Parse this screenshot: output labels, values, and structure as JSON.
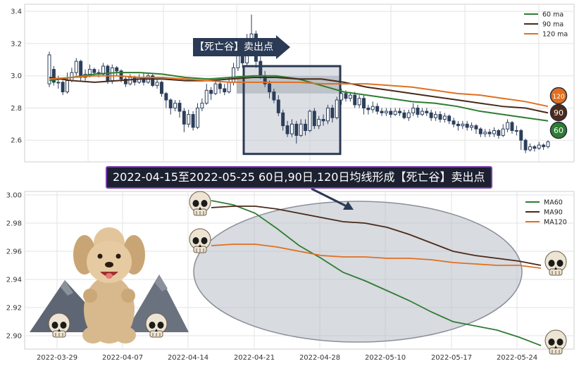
{
  "banner_text": "2022-04-15至2022-05-25 60日,90日,120日均线形成【死亡谷】卖出点",
  "arrow_label": "【死亡谷】卖出点",
  "colors": {
    "ma60": "#2e7d32",
    "ma90": "#4a2a1a",
    "ma120": "#e07020",
    "candle": "#2c3e5a",
    "box": "#2b3a55"
  },
  "icons": [
    "skull-icon",
    "poodle-illustration",
    "mountain-icon",
    "arrow-right-icon"
  ],
  "chart_data": [
    {
      "type": "candlestick",
      "y_ticks": [
        "2.6",
        "2.8",
        "3.0",
        "3.2",
        "3.4"
      ],
      "ylim": [
        2.47,
        3.44
      ],
      "legend": [
        "60 ma",
        "90 ma",
        "120 ma"
      ],
      "legend_placement": "top-right",
      "end_badges": [
        "120",
        "90",
        "60"
      ],
      "grid": true,
      "candles": [
        [
          2.95,
          3.13,
          3.15,
          2.93
        ],
        [
          3.04,
          2.96,
          3.06,
          2.94
        ],
        [
          2.96,
          2.96,
          3.0,
          2.92
        ],
        [
          2.96,
          2.9,
          2.97,
          2.88
        ],
        [
          2.9,
          2.97,
          3.02,
          2.89
        ],
        [
          2.97,
          3.02,
          3.05,
          2.96
        ],
        [
          3.02,
          3.09,
          3.11,
          3.0
        ],
        [
          3.09,
          2.99,
          3.1,
          2.97
        ],
        [
          2.99,
          3.01,
          3.04,
          2.97
        ],
        [
          3.01,
          3.04,
          3.07,
          2.99
        ],
        [
          3.04,
          3.02,
          3.05,
          3.0
        ],
        [
          3.02,
          3.01,
          3.04,
          2.99
        ],
        [
          3.01,
          3.06,
          3.08,
          3.0
        ],
        [
          3.06,
          2.97,
          3.07,
          2.95
        ],
        [
          2.97,
          3.05,
          3.07,
          2.95
        ],
        [
          3.05,
          3.03,
          3.06,
          3.0
        ],
        [
          3.03,
          2.98,
          3.04,
          2.96
        ],
        [
          2.98,
          2.95,
          3.0,
          2.93
        ],
        [
          2.95,
          2.99,
          3.01,
          2.94
        ],
        [
          2.99,
          2.96,
          3.0,
          2.94
        ],
        [
          2.96,
          2.99,
          3.01,
          2.95
        ],
        [
          2.99,
          2.96,
          3.02,
          2.94
        ],
        [
          2.96,
          3.0,
          3.02,
          2.95
        ],
        [
          3.0,
          2.94,
          3.01,
          2.93
        ],
        [
          2.94,
          2.96,
          2.98,
          2.92
        ],
        [
          2.96,
          2.89,
          2.97,
          2.87
        ],
        [
          2.89,
          2.85,
          2.9,
          2.8
        ],
        [
          2.85,
          2.8,
          2.86,
          2.76
        ],
        [
          2.8,
          2.83,
          2.85,
          2.78
        ],
        [
          2.83,
          2.78,
          2.85,
          2.74
        ],
        [
          2.78,
          2.7,
          2.8,
          2.65
        ],
        [
          2.7,
          2.76,
          2.79,
          2.68
        ],
        [
          2.76,
          2.68,
          2.78,
          2.66
        ],
        [
          2.68,
          2.8,
          2.83,
          2.67
        ],
        [
          2.8,
          2.83,
          2.86,
          2.78
        ],
        [
          2.83,
          2.91,
          2.95,
          2.82
        ],
        [
          2.91,
          2.89,
          2.93,
          2.85
        ],
        [
          2.89,
          2.95,
          2.97,
          2.88
        ],
        [
          2.95,
          2.92,
          2.97,
          2.89
        ],
        [
          2.92,
          2.9,
          2.95,
          2.88
        ],
        [
          2.9,
          2.96,
          2.99,
          2.89
        ],
        [
          2.96,
          3.05,
          3.08,
          2.94
        ],
        [
          3.05,
          3.13,
          3.16,
          3.03
        ],
        [
          3.13,
          3.08,
          3.2,
          3.05
        ],
        [
          3.08,
          3.23,
          3.26,
          3.06
        ],
        [
          3.23,
          3.26,
          3.38,
          3.18
        ],
        [
          3.26,
          3.09,
          3.28,
          3.05
        ],
        [
          3.09,
          3.0,
          3.12,
          2.98
        ],
        [
          3.0,
          2.95,
          3.03,
          2.93
        ],
        [
          2.95,
          2.9,
          2.97,
          2.86
        ],
        [
          2.9,
          2.85,
          2.92,
          2.83
        ],
        [
          2.85,
          2.77,
          2.88,
          2.75
        ],
        [
          2.77,
          2.69,
          2.79,
          2.66
        ],
        [
          2.69,
          2.64,
          2.72,
          2.62
        ],
        [
          2.64,
          2.7,
          2.73,
          2.62
        ],
        [
          2.7,
          2.63,
          2.72,
          2.58
        ],
        [
          2.63,
          2.7,
          2.73,
          2.62
        ],
        [
          2.7,
          2.66,
          2.73,
          2.63
        ],
        [
          2.66,
          2.78,
          2.79,
          2.65
        ],
        [
          2.78,
          2.69,
          2.8,
          2.67
        ],
        [
          2.69,
          2.73,
          2.75,
          2.67
        ],
        [
          2.73,
          2.72,
          2.76,
          2.69
        ],
        [
          2.72,
          2.8,
          2.82,
          2.7
        ],
        [
          2.8,
          2.74,
          2.82,
          2.71
        ],
        [
          2.74,
          2.85,
          2.87,
          2.73
        ],
        [
          2.85,
          2.89,
          2.92,
          2.82
        ],
        [
          2.89,
          2.86,
          2.91,
          2.84
        ],
        [
          2.86,
          2.88,
          2.9,
          2.84
        ],
        [
          2.88,
          2.82,
          2.9,
          2.8
        ],
        [
          2.82,
          2.86,
          2.88,
          2.8
        ],
        [
          2.86,
          2.8,
          2.88,
          2.76
        ],
        [
          2.8,
          2.79,
          2.82,
          2.76
        ],
        [
          2.79,
          2.81,
          2.84,
          2.77
        ],
        [
          2.81,
          2.78,
          2.83,
          2.76
        ],
        [
          2.78,
          2.77,
          2.8,
          2.75
        ],
        [
          2.77,
          2.78,
          2.8,
          2.75
        ],
        [
          2.78,
          2.76,
          2.8,
          2.74
        ],
        [
          2.76,
          2.78,
          2.8,
          2.75
        ],
        [
          2.78,
          2.77,
          2.8,
          2.75
        ],
        [
          2.77,
          2.74,
          2.79,
          2.73
        ],
        [
          2.74,
          2.77,
          2.79,
          2.72
        ],
        [
          2.77,
          2.8,
          2.83,
          2.75
        ],
        [
          2.8,
          2.76,
          2.82,
          2.74
        ],
        [
          2.76,
          2.78,
          2.8,
          2.75
        ],
        [
          2.78,
          2.77,
          2.8,
          2.75
        ],
        [
          2.77,
          2.74,
          2.79,
          2.72
        ],
        [
          2.74,
          2.76,
          2.78,
          2.72
        ],
        [
          2.76,
          2.73,
          2.78,
          2.71
        ],
        [
          2.73,
          2.75,
          2.77,
          2.71
        ],
        [
          2.75,
          2.72,
          2.76,
          2.7
        ],
        [
          2.72,
          2.7,
          2.74,
          2.68
        ],
        [
          2.7,
          2.69,
          2.72,
          2.66
        ],
        [
          2.69,
          2.7,
          2.72,
          2.67
        ],
        [
          2.7,
          2.68,
          2.72,
          2.66
        ],
        [
          2.68,
          2.69,
          2.71,
          2.66
        ],
        [
          2.69,
          2.67,
          2.7,
          2.64
        ],
        [
          2.67,
          2.64,
          2.68,
          2.62
        ],
        [
          2.64,
          2.65,
          2.67,
          2.62
        ],
        [
          2.65,
          2.64,
          2.67,
          2.62
        ],
        [
          2.64,
          2.66,
          2.68,
          2.62
        ],
        [
          2.66,
          2.63,
          2.67,
          2.61
        ],
        [
          2.63,
          2.67,
          2.7,
          2.62
        ],
        [
          2.67,
          2.71,
          2.73,
          2.65
        ],
        [
          2.71,
          2.66,
          2.72,
          2.64
        ],
        [
          2.66,
          2.66,
          2.69,
          2.63
        ],
        [
          2.66,
          2.6,
          2.67,
          2.54
        ],
        [
          2.6,
          2.54,
          2.61,
          2.52
        ],
        [
          2.54,
          2.56,
          2.58,
          2.53
        ],
        [
          2.56,
          2.55,
          2.57,
          2.53
        ],
        [
          2.55,
          2.57,
          2.59,
          2.54
        ],
        [
          2.57,
          2.56,
          2.58,
          2.54
        ],
        [
          2.56,
          2.59,
          2.6,
          2.55
        ]
      ],
      "series": [
        {
          "name": "60 ma",
          "values": [
            2.97,
            2.99,
            3.01,
            3.02,
            3.02,
            3.01,
            2.99,
            2.98,
            2.99,
            3.0,
            3.0,
            2.98,
            2.94,
            2.9,
            2.88,
            2.86,
            2.84,
            2.83,
            2.81,
            2.78,
            2.76,
            2.74,
            2.72
          ]
        },
        {
          "name": "90 ma",
          "values": [
            2.99,
            2.97,
            2.96,
            2.97,
            2.98,
            2.98,
            2.97,
            2.97,
            2.98,
            2.99,
            2.99,
            2.98,
            2.98,
            2.96,
            2.93,
            2.91,
            2.89,
            2.87,
            2.85,
            2.83,
            2.81,
            2.8,
            2.77
          ]
        },
        {
          "name": "120 ma",
          "values": [
            2.98,
            2.99,
            3.0,
            3.0,
            2.99,
            2.99,
            2.98,
            2.97,
            2.96,
            2.96,
            2.96,
            2.96,
            2.95,
            2.95,
            2.95,
            2.94,
            2.93,
            2.91,
            2.89,
            2.88,
            2.86,
            2.84,
            2.81
          ]
        }
      ]
    },
    {
      "type": "line",
      "x_tick_labels": [
        "2022-03-29",
        "2022-04-07",
        "2022-04-14",
        "2022-04-21",
        "2022-04-28",
        "2022-05-10",
        "2022-05-17",
        "2022-05-24"
      ],
      "y_ticks": [
        "2.90",
        "2.92",
        "2.94",
        "2.96",
        "2.98",
        "3.00"
      ],
      "ylim": [
        2.891,
        3.002
      ],
      "legend": [
        "MA60",
        "MA90",
        "MA120"
      ],
      "legend_placement": "top-right",
      "grid": true,
      "series": [
        {
          "name": "MA60",
          "values": [
            2.996,
            2.993,
            2.987,
            2.976,
            2.964,
            2.955,
            2.945,
            2.939,
            2.932,
            2.925,
            2.917,
            2.91,
            2.907,
            2.904,
            2.899,
            2.893
          ]
        },
        {
          "name": "MA90",
          "values": [
            2.991,
            2.992,
            2.992,
            2.99,
            2.987,
            2.984,
            2.981,
            2.98,
            2.977,
            2.972,
            2.966,
            2.96,
            2.957,
            2.955,
            2.953,
            2.95
          ]
        },
        {
          "name": "MA120",
          "values": [
            2.964,
            2.965,
            2.965,
            2.963,
            2.96,
            2.957,
            2.956,
            2.956,
            2.955,
            2.955,
            2.954,
            2.952,
            2.951,
            2.95,
            2.95,
            2.948
          ]
        }
      ]
    }
  ]
}
